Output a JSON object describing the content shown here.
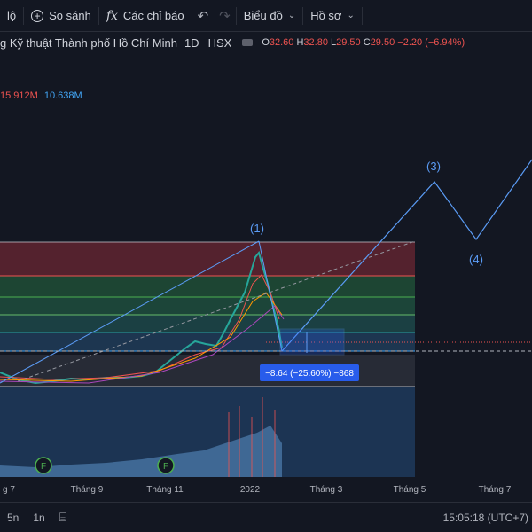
{
  "toolbar": {
    "menu_fragment": "lộ",
    "compare_label": "So sánh",
    "indicators_label": "Các chỉ báo",
    "chart_label": "Biểu đồ",
    "profile_label": "Hồ sơ"
  },
  "symbol": {
    "title": "g Kỹ thuật Thành phố Hồ Chí Minh",
    "timeframe": "1D",
    "exchange": "HSX",
    "o_label": "O",
    "o_value": "32.60",
    "h_label": "H",
    "h_value": "32.80",
    "l_label": "L",
    "l_value": "29.50",
    "c_label": "C",
    "c_value": "29.50",
    "change": "−2.20 (−6.94%)"
  },
  "volume": {
    "v1": "15.912M",
    "v2": "10.638M",
    "colors": {
      "v1": "#ef5350",
      "v2": "#42a5f5"
    }
  },
  "measure_label": "−8.64 (−25.60%) −868",
  "wave_labels": [
    "(1)",
    "(3)",
    "(4)"
  ],
  "earnings_marker": "F",
  "x_axis": [
    "g 7",
    "Tháng 9",
    "Tháng 11",
    "2022",
    "Tháng 3",
    "Tháng 5",
    "Tháng 7"
  ],
  "bottombar": {
    "ranges": [
      "5n",
      "1n"
    ],
    "time": "15:05:18 (UTC+7)"
  },
  "colors": {
    "background": "#131722",
    "wave": "#5b9cf6",
    "up": "#26a69a",
    "down": "#ef5350"
  }
}
